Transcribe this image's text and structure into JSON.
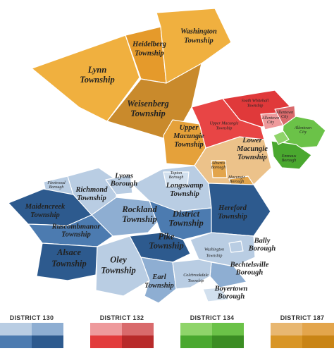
{
  "map": {
    "regions": {
      "lynn": [
        "Lynn",
        "Township"
      ],
      "heidelberg": [
        "Heidelberg",
        "Township"
      ],
      "washington_n": [
        "Washington",
        "Township"
      ],
      "weisenberg": [
        "Weisenberg",
        "Township"
      ],
      "south_whitehall": [
        "South Whitehall",
        "Township"
      ],
      "allentown_city_1": [
        "Allentown",
        "City"
      ],
      "allentown_city_2": [
        "Allentown",
        "City"
      ],
      "allentown_city_3": [
        "Allentown",
        "City"
      ],
      "upper_macungie_red": [
        "Upper Macungie",
        "Township"
      ],
      "upper_macungie": [
        "Upper",
        "Macungie",
        "Township"
      ],
      "lower_macungie": [
        "Lower",
        "Macungie",
        "Township"
      ],
      "emmaus": [
        "Emmaus",
        "Borough"
      ],
      "alburtis": [
        "Alburtis",
        "Borough"
      ],
      "macungie": [
        "Macungie",
        "Borough"
      ],
      "lyons": [
        "Lyons",
        "Borough"
      ],
      "topton": [
        "Topton",
        "Borough"
      ],
      "fleetwood": [
        "Fleetwood",
        "Borough"
      ],
      "richmond": [
        "Richmond",
        "Township"
      ],
      "longswamp": [
        "Longswamp",
        "Township"
      ],
      "maidencreek": [
        "Maidencreek",
        "Township"
      ],
      "rockland": [
        "Rockland",
        "Township"
      ],
      "district_twp": [
        "District",
        "Township"
      ],
      "hereford": [
        "Hereford",
        "Township"
      ],
      "ruscombmanor": [
        "Ruscombmanor",
        "Township"
      ],
      "pike": [
        "Pike",
        "Township"
      ],
      "alsace": [
        "Alsace",
        "Township"
      ],
      "oley": [
        "Oley",
        "Township"
      ],
      "washington_s": [
        "Washington",
        "Township"
      ],
      "bally": [
        "Bally",
        "Borough"
      ],
      "bechtelsville": [
        "Bechtelsville",
        "Borough"
      ],
      "earl": [
        "Earl",
        "Township"
      ],
      "colebrookdale": [
        "Colebrookdale",
        "Township"
      ],
      "boyertown": [
        "Boyertown",
        "Borough"
      ]
    }
  },
  "legend": [
    {
      "label": "DISTRICT 130",
      "colors": [
        "#b9cde3",
        "#8eaed2",
        "#4c7bb0",
        "#2d5a8e"
      ]
    },
    {
      "label": "DISTRICT 132",
      "colors": [
        "#ee9a9c",
        "#d96a6c",
        "#e23b3b",
        "#b82a2a"
      ]
    },
    {
      "label": "DISTRICT 134",
      "colors": [
        "#8fd46a",
        "#6bc248",
        "#4aa82f",
        "#3b8d23"
      ]
    },
    {
      "label": "DISTRICT 187",
      "colors": [
        "#e8b771",
        "#e3a54c",
        "#d89526",
        "#c98415"
      ]
    }
  ]
}
